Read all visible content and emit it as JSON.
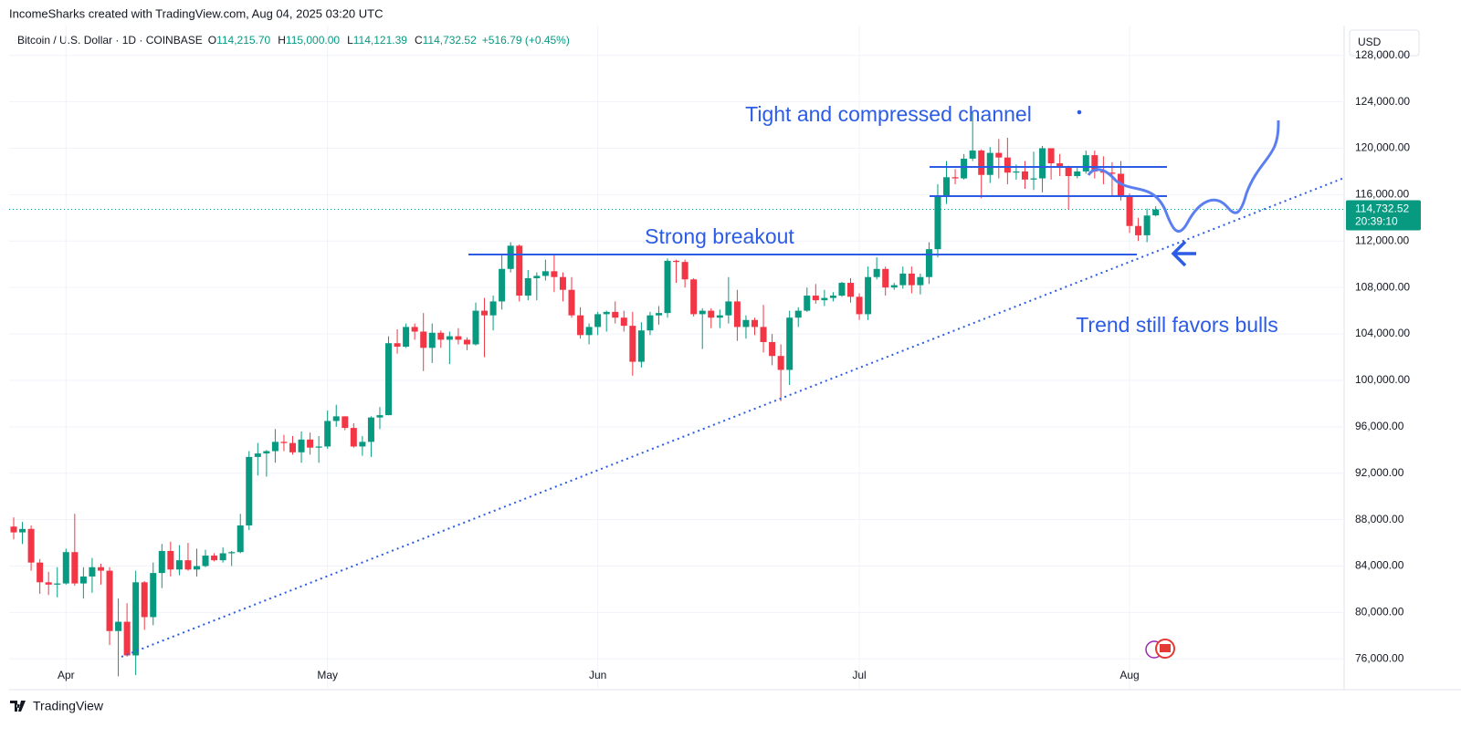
{
  "header": {
    "credit": "IncomeSharks created with TradingView.com, Aug 04, 2025 03:20 UTC",
    "ohlc_labels": [
      {
        "key": "O",
        "value": "114,215.70"
      },
      {
        "key": "H",
        "value": "115,000.00"
      },
      {
        "key": "L",
        "value": "114,121.39"
      },
      {
        "key": "C",
        "value": "114,732.52"
      }
    ],
    "change": "+516.79 (+0.45%)",
    "currency": "USD",
    "last_price_label": "114,732.52",
    "countdown": "20:39:10"
  },
  "footer": {
    "brand": "TradingView"
  },
  "chart_data": {
    "type": "candlestick",
    "annotations": [
      "Tight and compressed channel",
      "Strong breakout",
      "Trend still favors bulls"
    ],
    "categories": [
      null,
      null,
      null,
      null,
      null,
      null,
      "Apr",
      null,
      null,
      null,
      null,
      null,
      null,
      null,
      null,
      null,
      null,
      null,
      null,
      null,
      null,
      null,
      null,
      null,
      null,
      null,
      null,
      null,
      null,
      null,
      null,
      null,
      null,
      null,
      null,
      null,
      "May",
      null,
      null,
      null,
      null,
      null,
      null,
      null,
      null,
      null,
      null,
      null,
      null,
      null,
      null,
      null,
      null,
      null,
      null,
      null,
      null,
      null,
      null,
      null,
      null,
      null,
      null,
      null,
      null,
      null,
      null,
      "Jun",
      null,
      null,
      null,
      null,
      null,
      null,
      null,
      null,
      null,
      null,
      null,
      null,
      null,
      null,
      null,
      null,
      null,
      null,
      null,
      null,
      null,
      null,
      null,
      null,
      null,
      null,
      null,
      null,
      null,
      "Jul",
      null,
      null,
      null,
      null,
      null,
      null,
      null,
      null,
      null,
      null,
      null,
      null,
      null,
      null,
      null,
      null,
      null,
      null,
      null,
      null,
      null,
      null,
      null,
      null,
      null,
      null,
      null,
      null,
      null,
      null,
      "Aug",
      null,
      null,
      null
    ],
    "series": [
      {
        "name": "Bitcoin / U.S. Dollar · 1D · COINBASE",
        "up_color": "#089981",
        "down_color": "#f23645",
        "open": [
          87400,
          86900,
          87200,
          84300,
          82600,
          82400,
          82500,
          85200,
          82500,
          83100,
          83900,
          83600,
          78400,
          79200,
          76300,
          82600,
          79600,
          83400,
          85300,
          83700,
          84500,
          83700,
          84000,
          84900,
          84500,
          85100,
          85200,
          87500,
          93400,
          93700,
          93900,
          94700,
          94600,
          93800,
          94900,
          94200,
          94300,
          96500,
          96900,
          95900,
          94300,
          94700,
          96800,
          97000,
          103200,
          102900,
          104600,
          104200,
          102800,
          104100,
          103500,
          103800,
          103500,
          103100,
          106000,
          105600,
          106800,
          109600,
          111600,
          107300,
          108800,
          109000,
          109400,
          108900,
          107800,
          105600,
          103900,
          104600,
          105700,
          105900,
          105400,
          104700,
          101600,
          104300,
          105600,
          105800,
          110300,
          110200,
          108700,
          105700,
          106000,
          105400,
          105600,
          106800,
          104600,
          105200,
          104600,
          103300,
          102100,
          100900,
          105400,
          106000,
          107300,
          106900,
          107100,
          107300,
          108400,
          107200,
          105700,
          108900,
          109600,
          108000,
          108200,
          109200,
          108200,
          108900,
          111300,
          115900,
          117500,
          117400,
          119100,
          119800,
          117700,
          119600,
          119200,
          117900,
          118000,
          117300,
          117400,
          120000,
          118700,
          118400,
          117600,
          118000,
          119400,
          118000,
          117900,
          117800,
          115800,
          113300,
          112500,
          114215.7
        ],
        "high": [
          88200,
          87800,
          87500,
          84600,
          83500,
          83900,
          85500,
          88500,
          83900,
          84700,
          84200,
          83900,
          81200,
          80800,
          83600,
          82700,
          84300,
          85900,
          86100,
          85800,
          86000,
          85500,
          85400,
          85100,
          85600,
          85300,
          88500,
          93900,
          94600,
          94000,
          95800,
          95300,
          95200,
          95600,
          95500,
          95200,
          97400,
          97900,
          96900,
          96300,
          95200,
          96900,
          97700,
          103800,
          104400,
          104900,
          104900,
          105800,
          104900,
          104300,
          104200,
          104500,
          103700,
          106700,
          107100,
          107300,
          110800,
          111900,
          111700,
          109500,
          109300,
          110400,
          110800,
          109300,
          108900,
          106300,
          104900,
          105900,
          106000,
          106800,
          106000,
          105900,
          105000,
          105900,
          106400,
          110500,
          110400,
          110400,
          108800,
          106200,
          106200,
          106100,
          108900,
          107800,
          105600,
          105400,
          106500,
          104000,
          103100,
          106000,
          106300,
          108000,
          108300,
          107800,
          107600,
          108500,
          108800,
          107500,
          109800,
          110600,
          109800,
          108400,
          109800,
          109800,
          109200,
          111900,
          116900,
          118900,
          118200,
          119500,
          123200,
          119900,
          120100,
          120800,
          120900,
          118600,
          118900,
          119700,
          120200,
          120000,
          119500,
          118500,
          118300,
          119800,
          119800,
          119300,
          118800,
          118900,
          116100,
          114000,
          114800,
          115000
        ],
        "low": [
          86300,
          85900,
          83600,
          81600,
          81500,
          81300,
          82400,
          82300,
          81200,
          81700,
          82400,
          77200,
          74500,
          76200,
          74600,
          78500,
          78900,
          82100,
          83100,
          83200,
          83600,
          83100,
          83900,
          84400,
          84300,
          84000,
          85100,
          87100,
          91800,
          91700,
          92900,
          93900,
          93600,
          92900,
          93600,
          92900,
          94100,
          96000,
          95700,
          94200,
          93500,
          93400,
          95800,
          97000,
          102300,
          102800,
          103500,
          100800,
          101500,
          102800,
          101400,
          103100,
          102600,
          103000,
          102000,
          104300,
          106100,
          109300,
          106800,
          106900,
          106900,
          108600,
          107600,
          106800,
          105400,
          103600,
          103100,
          103900,
          104200,
          104900,
          104200,
          100400,
          101100,
          103900,
          104800,
          105400,
          108400,
          108000,
          105500,
          102700,
          104500,
          104500,
          104900,
          103400,
          103600,
          103900,
          102400,
          101300,
          98200,
          99600,
          104600,
          105900,
          106600,
          106400,
          106800,
          107200,
          106700,
          105200,
          105200,
          108700,
          107300,
          107800,
          107900,
          107500,
          107400,
          108300,
          110600,
          115200,
          116900,
          117300,
          118900,
          115700,
          117000,
          117400,
          116900,
          117300,
          116500,
          116400,
          116200,
          117300,
          117600,
          114700,
          117400,
          117800,
          117400,
          116900,
          115900,
          115500,
          112700,
          112000,
          111900,
          114121.39
        ],
        "close": [
          86900,
          87200,
          84300,
          82600,
          82400,
          82500,
          85200,
          82500,
          83100,
          83900,
          83600,
          78400,
          79200,
          76300,
          82600,
          79600,
          83400,
          85300,
          83700,
          84500,
          83700,
          84000,
          84900,
          84500,
          85100,
          85200,
          87500,
          93400,
          93700,
          93900,
          94700,
          94600,
          93800,
          94900,
          94200,
          94300,
          96500,
          96900,
          95900,
          94300,
          94700,
          96800,
          97000,
          103200,
          102900,
          104600,
          104200,
          102800,
          104100,
          103500,
          103800,
          103500,
          103100,
          106000,
          105600,
          106800,
          109600,
          111600,
          107300,
          108800,
          109000,
          109400,
          108900,
          107800,
          105600,
          103900,
          104600,
          105700,
          105900,
          105400,
          104700,
          101600,
          104300,
          105600,
          105800,
          110300,
          110200,
          108700,
          105700,
          106000,
          105400,
          105600,
          106800,
          104600,
          105200,
          104600,
          103300,
          102100,
          100900,
          105400,
          106000,
          107300,
          106900,
          107100,
          107300,
          108400,
          107200,
          105700,
          108900,
          109600,
          108000,
          108200,
          109200,
          108200,
          108900,
          111300,
          115900,
          117500,
          117400,
          119100,
          119800,
          117700,
          119600,
          119200,
          117900,
          118000,
          117300,
          117400,
          120000,
          118700,
          118400,
          117600,
          118000,
          119400,
          118000,
          117900,
          117800,
          115800,
          113300,
          112500,
          114200,
          114732.52
        ]
      }
    ],
    "ylim": [
      73350,
      130570
    ],
    "yticks": [
      {
        "value": 76000,
        "label": "76,000.00"
      },
      {
        "value": 80000,
        "label": "80,000.00"
      },
      {
        "value": 84000,
        "label": "84,000.00"
      },
      {
        "value": 88000,
        "label": "88,000.00"
      },
      {
        "value": 92000,
        "label": "92,000.00"
      },
      {
        "value": 96000,
        "label": "96,000.00"
      },
      {
        "value": 100000,
        "label": "100,000.00"
      },
      {
        "value": 104000,
        "label": "104,000.00"
      },
      {
        "value": 108000,
        "label": "108,000.00"
      },
      {
        "value": 112000,
        "label": "112,000.00"
      },
      {
        "value": 116000,
        "label": "116,000.00"
      },
      {
        "value": 120000,
        "label": "120,000.00"
      },
      {
        "value": 124000,
        "label": "124,000.00"
      },
      {
        "value": 128000,
        "label": "128,000.00"
      }
    ],
    "grid": true
  }
}
